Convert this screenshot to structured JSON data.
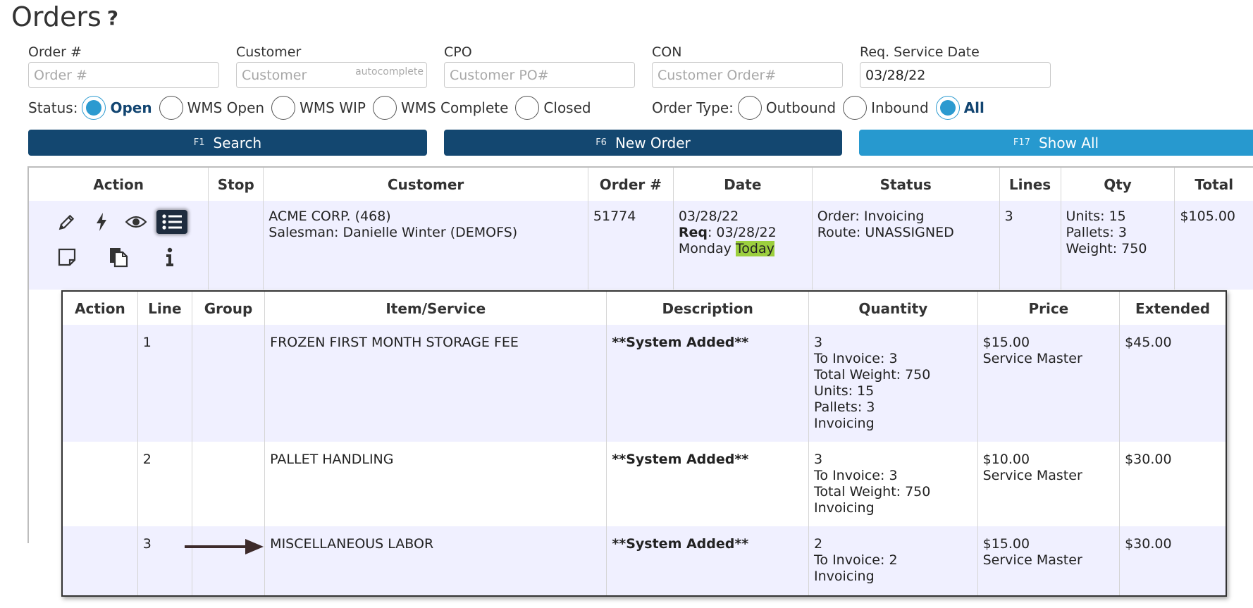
{
  "page": {
    "title": "Orders",
    "help_glyph": "?"
  },
  "filters": {
    "order_num": {
      "label": "Order #",
      "placeholder": "Order #",
      "value": ""
    },
    "customer": {
      "label": "Customer",
      "placeholder": "Customer",
      "hint": "autocomplete",
      "value": ""
    },
    "cpo": {
      "label": "CPO",
      "placeholder": "Customer PO#",
      "value": ""
    },
    "con": {
      "label": "CON",
      "placeholder": "Customer Order#",
      "value": ""
    },
    "req_date": {
      "label": "Req. Service Date",
      "placeholder": "",
      "value": "03/28/22"
    }
  },
  "status": {
    "label": "Status:",
    "options": [
      {
        "label": "Open",
        "selected": true
      },
      {
        "label": "WMS Open",
        "selected": false
      },
      {
        "label": "WMS WIP",
        "selected": false
      },
      {
        "label": "WMS Complete",
        "selected": false
      },
      {
        "label": "Closed",
        "selected": false
      }
    ]
  },
  "order_type": {
    "label": "Order Type:",
    "options": [
      {
        "label": "Outbound",
        "selected": false
      },
      {
        "label": "Inbound",
        "selected": false
      },
      {
        "label": "All",
        "selected": true
      }
    ]
  },
  "buttons": {
    "search": {
      "key": "F1",
      "label": "Search"
    },
    "new_order": {
      "key": "F6",
      "label": "New Order"
    },
    "show_all": {
      "key": "F17",
      "label": "Show All"
    }
  },
  "colors": {
    "primary": "#134770",
    "accent": "#2799cf",
    "row_bg": "#f0f0ff",
    "today_highlight": "#9ccf3f",
    "arrow": "#3d2b2b"
  },
  "orders_table": {
    "headers": [
      "Action",
      "Stop",
      "Customer",
      "Order #",
      "Date",
      "Status",
      "Lines",
      "Qty",
      "Total"
    ],
    "row": {
      "action_icons": [
        "pencil-icon",
        "lightning-icon",
        "eye-icon",
        "list-icon",
        "note-icon",
        "copy-icon",
        "info-icon"
      ],
      "stop": "",
      "customer_name": "ACME CORP. (468)",
      "salesman": "Salesman: Danielle Winter (DEMOFS)",
      "order_num": "51774",
      "date": "03/28/22",
      "req_label": "Req",
      "req_date": ": 03/28/22",
      "day": "Monday",
      "today": "Today",
      "status_order": "Order: Invoicing",
      "status_route": "Route: UNASSIGNED",
      "lines": "3",
      "qty_units": "Units: 15",
      "qty_pallets": "Pallets: 3",
      "qty_weight": "Weight: 750",
      "total": "$105.00"
    }
  },
  "lines_table": {
    "headers": [
      "Action",
      "Line",
      "Group",
      "Item/Service",
      "Description",
      "Quantity",
      "Price",
      "Extended"
    ],
    "rows": [
      {
        "line": "1",
        "group": "",
        "item": "FROZEN FIRST MONTH STORAGE FEE",
        "description": "**System Added**",
        "quantity": [
          "3",
          "To Invoice: 3",
          "Total Weight: 750",
          "Units: 15",
          "Pallets: 3",
          "Invoicing"
        ],
        "price": "$15.00",
        "price_source": "Service Master",
        "extended": "$45.00"
      },
      {
        "line": "2",
        "group": "",
        "item": "PALLET HANDLING",
        "description": "**System Added**",
        "quantity": [
          "3",
          "To Invoice: 3",
          "Total Weight: 750",
          "Invoicing"
        ],
        "price": "$10.00",
        "price_source": "Service Master",
        "extended": "$30.00"
      },
      {
        "line": "3",
        "group": "",
        "item": "MISCELLANEOUS LABOR",
        "description": "**System Added**",
        "quantity": [
          "2",
          "To Invoice: 2",
          "Invoicing"
        ],
        "price": "$15.00",
        "price_source": "Service Master",
        "extended": "$30.00"
      }
    ]
  }
}
